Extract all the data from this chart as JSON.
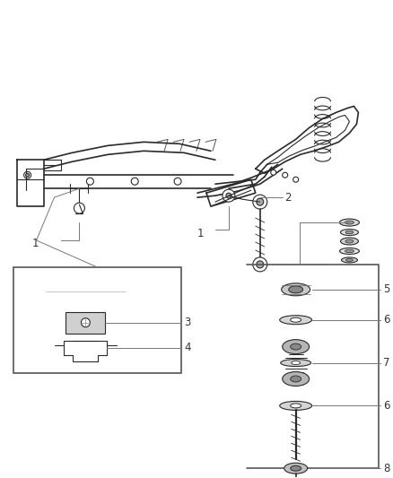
{
  "bg_color": "#ffffff",
  "line_color": "#2a2a2a",
  "gray_color": "#888888",
  "light_gray": "#cccccc",
  "fig_width": 4.38,
  "fig_height": 5.33,
  "dpi": 100,
  "label_fs": 8.5,
  "leader_color": "#777777",
  "leader_lw": 0.7
}
